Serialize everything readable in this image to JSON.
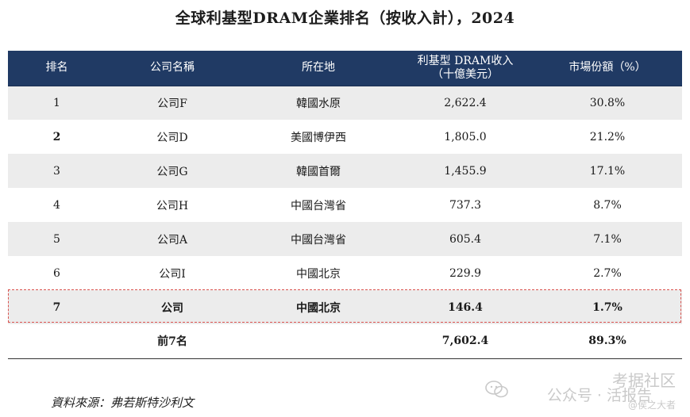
{
  "title": "全球利基型DRAM企業排名（按收入計），2024",
  "table": {
    "headers": {
      "rank": "排名",
      "company": "公司名稱",
      "location": "所在地",
      "revenue_line1": "利基型 DRAM收入",
      "revenue_line2": "（十億美元）",
      "share": "市場份額（%）"
    },
    "rows": [
      {
        "rank": "1",
        "company": "公司F",
        "location": "韓國水原",
        "revenue": "2,622.4",
        "share": "30.8%"
      },
      {
        "rank": "2",
        "company": "公司D",
        "location": "美國博伊西",
        "revenue": "1,805.0",
        "share": "21.2%"
      },
      {
        "rank": "3",
        "company": "公司G",
        "location": "韓國首爾",
        "revenue": "1,455.9",
        "share": "17.1%"
      },
      {
        "rank": "4",
        "company": "公司H",
        "location": "中國台灣省",
        "revenue": "737.3",
        "share": "8.7%"
      },
      {
        "rank": "5",
        "company": "公司A",
        "location": "中國台灣省",
        "revenue": "605.4",
        "share": "7.1%"
      },
      {
        "rank": "6",
        "company": "公司I",
        "location": "中國北京",
        "revenue": "229.9",
        "share": "2.7%"
      },
      {
        "rank": "7",
        "company": "公司",
        "location": "中國北京",
        "revenue": "146.4",
        "share": "1.7%"
      }
    ],
    "total": {
      "label": "前7名",
      "revenue": "7,602.4",
      "share": "89.3%"
    }
  },
  "source": "資料來源：弗若斯特沙利文",
  "watermark": {
    "line1": "考据社区",
    "line2": "公众号 · 活报告",
    "line3": "@侯之大者"
  }
}
